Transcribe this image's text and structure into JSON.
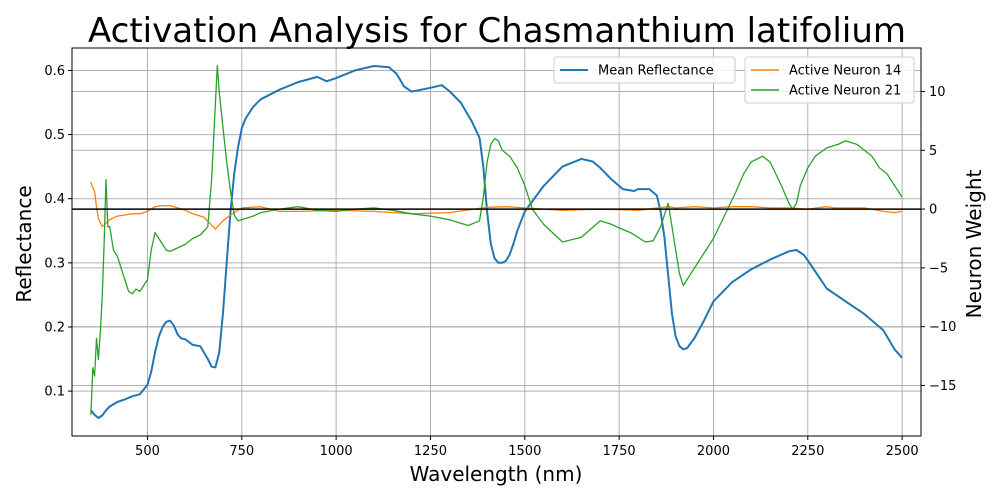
{
  "chart_data": {
    "type": "line",
    "title": "Activation Analysis for Chasmanthium latifolium",
    "xlabel": "Wavelength (nm)",
    "ylabel": "Reflectance",
    "y2label": "Neuron Weight",
    "xlim": [
      300,
      2550
    ],
    "ylim": [
      0.03,
      0.635
    ],
    "y2lim": [
      -19.3,
      13.7
    ],
    "xticks": [
      500,
      750,
      1000,
      1250,
      1500,
      1750,
      2000,
      2250,
      2500
    ],
    "yticks": [
      0.1,
      0.2,
      0.3,
      0.4,
      0.5,
      0.6
    ],
    "y2ticks": [
      -15,
      -10,
      -5,
      0,
      5,
      10
    ],
    "grid": true,
    "hline_y2": 0,
    "legends": [
      {
        "position": "top-center",
        "entries": [
          "Mean Reflectance"
        ]
      },
      {
        "position": "top-right",
        "entries": [
          "Active Neuron 14",
          "Active Neuron 21"
        ]
      }
    ],
    "series": [
      {
        "name": "Mean Reflectance",
        "axis": "left",
        "color": "#1f77b4",
        "x": [
          350,
          360,
          370,
          380,
          390,
          400,
          420,
          440,
          460,
          480,
          500,
          510,
          520,
          530,
          540,
          550,
          560,
          570,
          580,
          590,
          600,
          620,
          640,
          660,
          670,
          680,
          690,
          700,
          710,
          720,
          730,
          740,
          750,
          760,
          780,
          800,
          850,
          900,
          950,
          975,
          1000,
          1050,
          1100,
          1140,
          1160,
          1180,
          1200,
          1250,
          1280,
          1300,
          1330,
          1360,
          1380,
          1390,
          1400,
          1410,
          1420,
          1430,
          1440,
          1450,
          1460,
          1470,
          1480,
          1500,
          1550,
          1600,
          1650,
          1680,
          1700,
          1730,
          1760,
          1790,
          1800,
          1830,
          1850,
          1860,
          1870,
          1880,
          1890,
          1900,
          1910,
          1920,
          1930,
          1950,
          1975,
          2000,
          2050,
          2100,
          2150,
          2200,
          2220,
          2240,
          2260,
          2300,
          2350,
          2400,
          2450,
          2480,
          2500
        ],
        "y": [
          0.07,
          0.063,
          0.058,
          0.062,
          0.07,
          0.076,
          0.083,
          0.087,
          0.092,
          0.095,
          0.11,
          0.13,
          0.16,
          0.185,
          0.2,
          0.208,
          0.21,
          0.202,
          0.188,
          0.182,
          0.181,
          0.172,
          0.17,
          0.15,
          0.138,
          0.137,
          0.16,
          0.22,
          0.3,
          0.38,
          0.44,
          0.48,
          0.51,
          0.525,
          0.543,
          0.555,
          0.57,
          0.582,
          0.59,
          0.583,
          0.588,
          0.6,
          0.607,
          0.605,
          0.595,
          0.575,
          0.567,
          0.573,
          0.577,
          0.568,
          0.55,
          0.52,
          0.495,
          0.45,
          0.38,
          0.33,
          0.307,
          0.3,
          0.3,
          0.303,
          0.313,
          0.33,
          0.35,
          0.38,
          0.42,
          0.45,
          0.462,
          0.458,
          0.448,
          0.43,
          0.415,
          0.412,
          0.415,
          0.415,
          0.405,
          0.38,
          0.34,
          0.28,
          0.22,
          0.185,
          0.17,
          0.165,
          0.167,
          0.183,
          0.21,
          0.24,
          0.27,
          0.29,
          0.305,
          0.318,
          0.32,
          0.312,
          0.295,
          0.26,
          0.24,
          0.22,
          0.195,
          0.165,
          0.152
        ]
      },
      {
        "name": "Active Neuron 14",
        "axis": "right",
        "color": "#ff7f0e",
        "x": [
          350,
          355,
          360,
          365,
          370,
          380,
          390,
          400,
          420,
          440,
          460,
          480,
          500,
          520,
          540,
          560,
          580,
          600,
          620,
          650,
          680,
          700,
          720,
          750,
          800,
          850,
          900,
          1000,
          1100,
          1200,
          1300,
          1400,
          1450,
          1500,
          1600,
          1700,
          1800,
          1880,
          1900,
          1950,
          2000,
          2050,
          2100,
          2150,
          2200,
          2250,
          2300,
          2320,
          2350,
          2400,
          2450,
          2480,
          2500
        ],
        "y": [
          2.3,
          1.8,
          1.5,
          0.2,
          -0.8,
          -1.5,
          -1.2,
          -0.9,
          -0.6,
          -0.5,
          -0.4,
          -0.4,
          -0.2,
          0.2,
          0.3,
          0.3,
          0.1,
          -0.1,
          -0.4,
          -0.7,
          -1.7,
          -1.0,
          -0.5,
          0.1,
          0.2,
          -0.2,
          -0.2,
          -0.1,
          -0.2,
          -0.4,
          -0.3,
          0.15,
          0.2,
          0.1,
          -0.1,
          0.0,
          -0.1,
          0.2,
          0.1,
          0.2,
          0.1,
          0.2,
          0.2,
          0.1,
          0.1,
          0.0,
          0.2,
          0.1,
          0.1,
          0.1,
          -0.2,
          -0.3,
          -0.2
        ]
      },
      {
        "name": "Active Neuron 21",
        "axis": "right",
        "color": "#2ca02c",
        "x": [
          350,
          355,
          360,
          365,
          370,
          375,
          380,
          385,
          390,
          395,
          400,
          410,
          420,
          430,
          440,
          450,
          460,
          470,
          480,
          490,
          500,
          510,
          520,
          530,
          540,
          550,
          560,
          580,
          600,
          620,
          640,
          660,
          670,
          680,
          685,
          690,
          700,
          710,
          720,
          730,
          740,
          760,
          780,
          800,
          850,
          900,
          950,
          1000,
          1050,
          1100,
          1150,
          1200,
          1250,
          1300,
          1350,
          1380,
          1390,
          1400,
          1410,
          1420,
          1430,
          1440,
          1460,
          1480,
          1500,
          1520,
          1550,
          1600,
          1650,
          1700,
          1730,
          1750,
          1780,
          1800,
          1820,
          1840,
          1860,
          1880,
          1890,
          1900,
          1910,
          1920,
          1930,
          1940,
          1950,
          1970,
          2000,
          2030,
          2060,
          2080,
          2100,
          2130,
          2150,
          2180,
          2200,
          2210,
          2220,
          2230,
          2250,
          2270,
          2300,
          2330,
          2350,
          2380,
          2400,
          2420,
          2440,
          2460,
          2480,
          2490,
          2500
        ],
        "y": [
          -17.5,
          -13.5,
          -14.2,
          -11.0,
          -12.8,
          -10.5,
          -7.5,
          -3.0,
          2.5,
          -1.5,
          -1.5,
          -3.5,
          -4.0,
          -5.0,
          -6.0,
          -7.0,
          -7.2,
          -6.8,
          -7.0,
          -6.5,
          -6.0,
          -3.5,
          -2.0,
          -2.5,
          -3.0,
          -3.5,
          -3.6,
          -3.3,
          -3.0,
          -2.5,
          -2.2,
          -1.5,
          2.5,
          9.0,
          12.2,
          10.0,
          7.0,
          4.0,
          1.5,
          -0.5,
          -1.0,
          -0.8,
          -0.6,
          -0.3,
          0.0,
          0.2,
          -0.1,
          -0.2,
          0.0,
          0.1,
          -0.1,
          -0.4,
          -0.6,
          -0.9,
          -1.4,
          -1.0,
          1.0,
          4.0,
          5.5,
          6.0,
          5.8,
          5.0,
          4.5,
          3.5,
          2.0,
          0.0,
          -1.3,
          -2.8,
          -2.4,
          -1.0,
          -1.3,
          -1.6,
          -2.0,
          -2.4,
          -2.8,
          -2.7,
          -1.5,
          0.5,
          -1.5,
          -3.5,
          -5.5,
          -6.5,
          -6.0,
          -5.5,
          -5.0,
          -4.0,
          -2.5,
          -0.5,
          1.5,
          3.0,
          4.0,
          4.5,
          4.0,
          2.0,
          0.5,
          0.0,
          0.5,
          2.0,
          3.5,
          4.5,
          5.2,
          5.5,
          5.8,
          5.5,
          5.0,
          4.5,
          3.5,
          3.0,
          2.0,
          1.5,
          1.0
        ]
      }
    ]
  }
}
